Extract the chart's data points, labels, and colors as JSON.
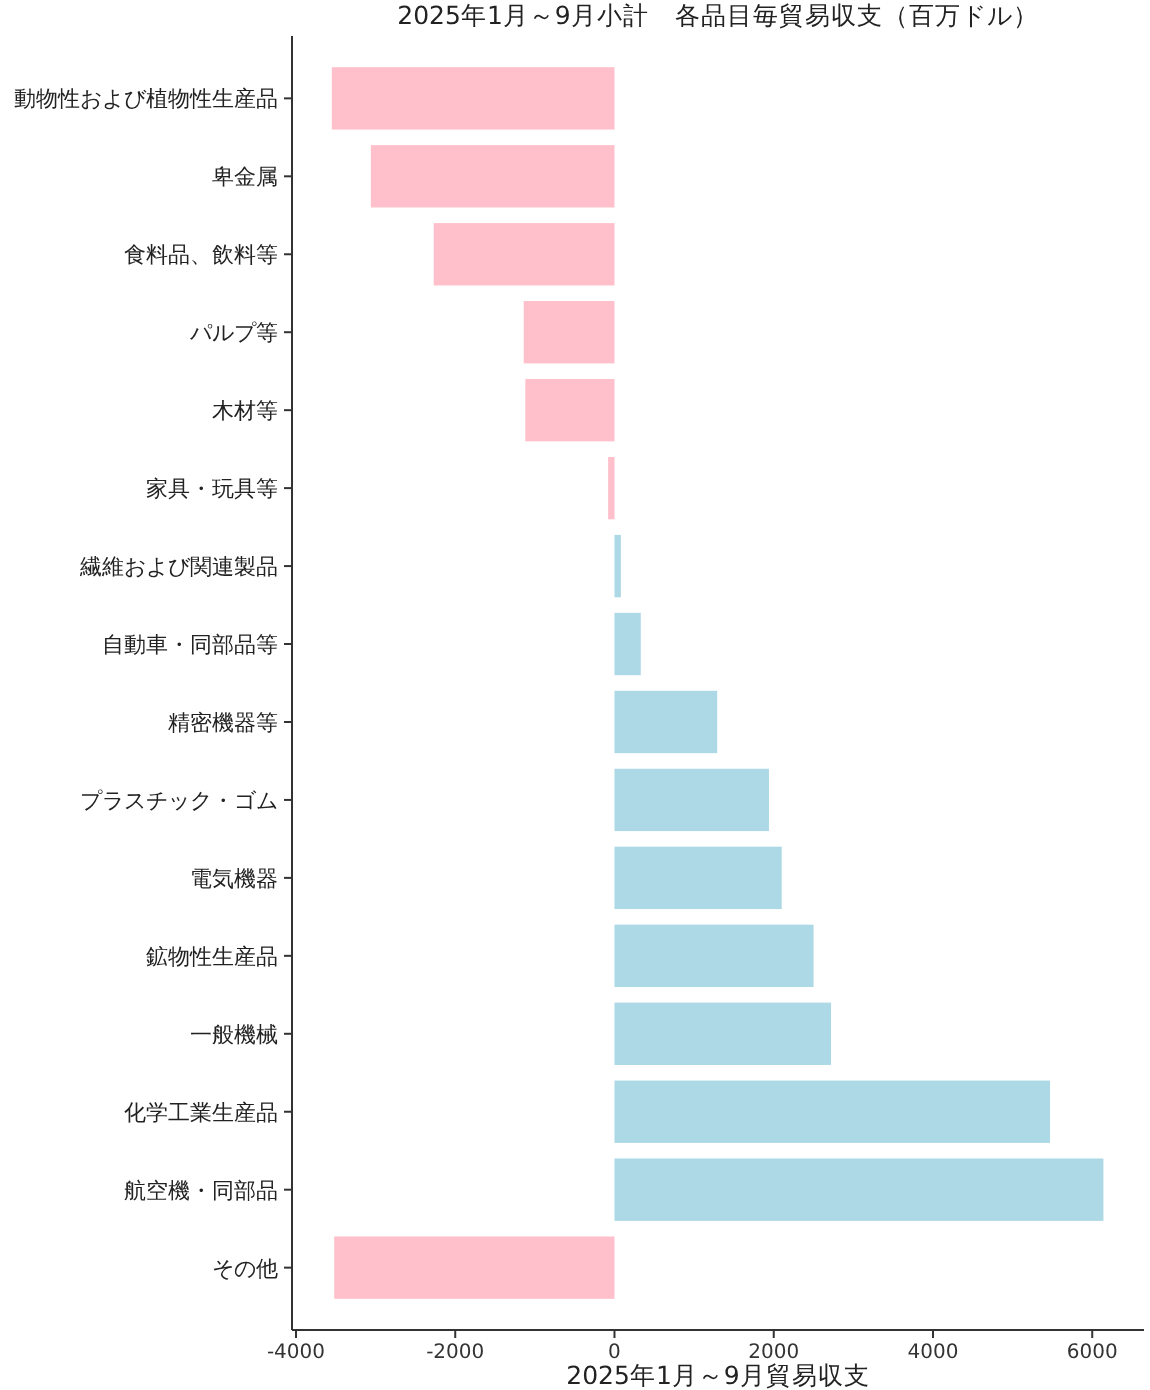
{
  "chart_data": {
    "type": "bar",
    "orientation": "horizontal",
    "title": "2025年1月～9月小計　各品目毎貿易収支（百万ドル）",
    "xlabel": "2025年1月～9月貿易収支",
    "categories": [
      "動物性および植物性生産品",
      "卑金属",
      "食料品、飲料等",
      "パルプ等",
      "木材等",
      "家具・玩具等",
      "繊維および関連製品",
      "自動車・同部品等",
      "精密機器等",
      "プラスチック・ゴム",
      "電気機器",
      "鉱物性生産品",
      "一般機械",
      "化学工業生産品",
      "航空機・同部品",
      "その他"
    ],
    "values": [
      -3550,
      -3060,
      -2270,
      -1140,
      -1120,
      -80,
      80,
      330,
      1290,
      1940,
      2100,
      2500,
      2720,
      5470,
      6140,
      -3520
    ],
    "colors": [
      "#ffc0cb",
      "#ffc0cb",
      "#ffc0cb",
      "#ffc0cb",
      "#ffc0cb",
      "#ffc0cb",
      "#add8e6",
      "#add8e6",
      "#add8e6",
      "#add8e6",
      "#add8e6",
      "#add8e6",
      "#add8e6",
      "#add8e6",
      "#add8e6",
      "#ffc0cb"
    ],
    "xlim": [
      -4050,
      6650
    ],
    "xticks": [
      -4000,
      -2000,
      0,
      2000,
      4000,
      6000
    ],
    "grid": false
  }
}
